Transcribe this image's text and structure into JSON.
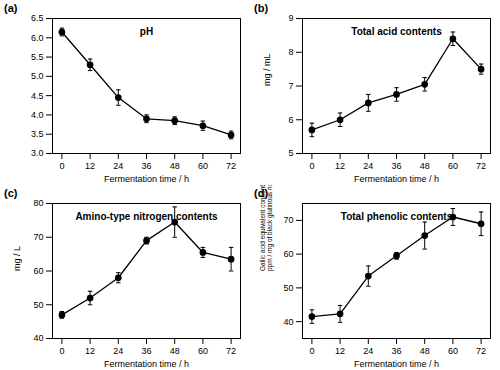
{
  "chart_data": [
    {
      "type": "line",
      "panel": "(a)",
      "title": "pH",
      "xlabel": "Fermentation time / h",
      "ylabel": "",
      "x": [
        0,
        12,
        24,
        36,
        48,
        60,
        72
      ],
      "values": [
        6.15,
        5.3,
        4.45,
        3.9,
        3.85,
        3.72,
        3.48
      ],
      "errors": [
        0.1,
        0.15,
        0.2,
        0.1,
        0.1,
        0.12,
        0.1
      ],
      "xlim": [
        -4,
        76
      ],
      "xticks": [
        0,
        12,
        24,
        36,
        48,
        60,
        72
      ],
      "ylim": [
        3,
        6.5
      ],
      "yticks": [
        {
          "value": 3,
          "label": "3.0"
        },
        {
          "value": 3.5,
          "label": "3.5"
        },
        {
          "value": 4,
          "label": "4.0"
        },
        {
          "value": 4.5,
          "label": "4.5"
        },
        {
          "value": 5,
          "label": "5.0"
        },
        {
          "value": 5.5,
          "label": "5.5"
        },
        {
          "value": 6,
          "label": "6.0"
        },
        {
          "value": 6.5,
          "label": "6.5"
        }
      ],
      "color": "#000000",
      "marker": "circle"
    },
    {
      "type": "line",
      "panel": "(b)",
      "title": "Total acid contents",
      "xlabel": "Fermentation time / h",
      "ylabel": "mg / mL",
      "x": [
        0,
        12,
        24,
        36,
        48,
        60,
        72
      ],
      "values": [
        5.7,
        6.0,
        6.5,
        6.75,
        7.05,
        8.4,
        7.5
      ],
      "errors": [
        0.2,
        0.2,
        0.25,
        0.2,
        0.2,
        0.2,
        0.15
      ],
      "xlim": [
        -4,
        76
      ],
      "xticks": [
        0,
        12,
        24,
        36,
        48,
        60,
        72
      ],
      "ylim": [
        5,
        9
      ],
      "yticks": [
        5,
        6,
        7,
        8,
        9
      ],
      "color": "#000000",
      "marker": "circle"
    },
    {
      "type": "line",
      "panel": "(c)",
      "title": "Amino-type nitrogen contents",
      "xlabel": "Fermentation time / h",
      "ylabel": "mg / L",
      "x": [
        0,
        12,
        24,
        36,
        48,
        60,
        72
      ],
      "values": [
        47,
        52,
        58,
        69,
        74.5,
        65.5,
        63.5
      ],
      "errors": [
        1,
        2,
        1.5,
        1,
        4.5,
        1.5,
        3.5
      ],
      "xlim": [
        -4,
        76
      ],
      "xticks": [
        0,
        12,
        24,
        36,
        48,
        60,
        72
      ],
      "ylim": [
        40,
        80
      ],
      "yticks": [
        40,
        50,
        60,
        70,
        80
      ],
      "color": "#000000",
      "marker": "circle"
    },
    {
      "type": "line",
      "panel": "(d)",
      "title": "Total phenolic contents",
      "xlabel": "Fermentation time / h",
      "ylabel": "Gallic acid equivalent concentration\nppm / mg of black glutinous rice wine",
      "x": [
        0,
        12,
        24,
        36,
        48,
        60,
        72
      ],
      "values": [
        41.5,
        42.3,
        53.5,
        59.5,
        65.5,
        71,
        69
      ],
      "errors": [
        2,
        2.5,
        3,
        1,
        4,
        2.5,
        3.5
      ],
      "xlim": [
        -4,
        76
      ],
      "xticks": [
        0,
        12,
        24,
        36,
        48,
        60,
        72
      ],
      "ylim": [
        35,
        75
      ],
      "yticks": [
        40,
        50,
        60,
        70
      ],
      "color": "#000000",
      "marker": "circle"
    }
  ]
}
